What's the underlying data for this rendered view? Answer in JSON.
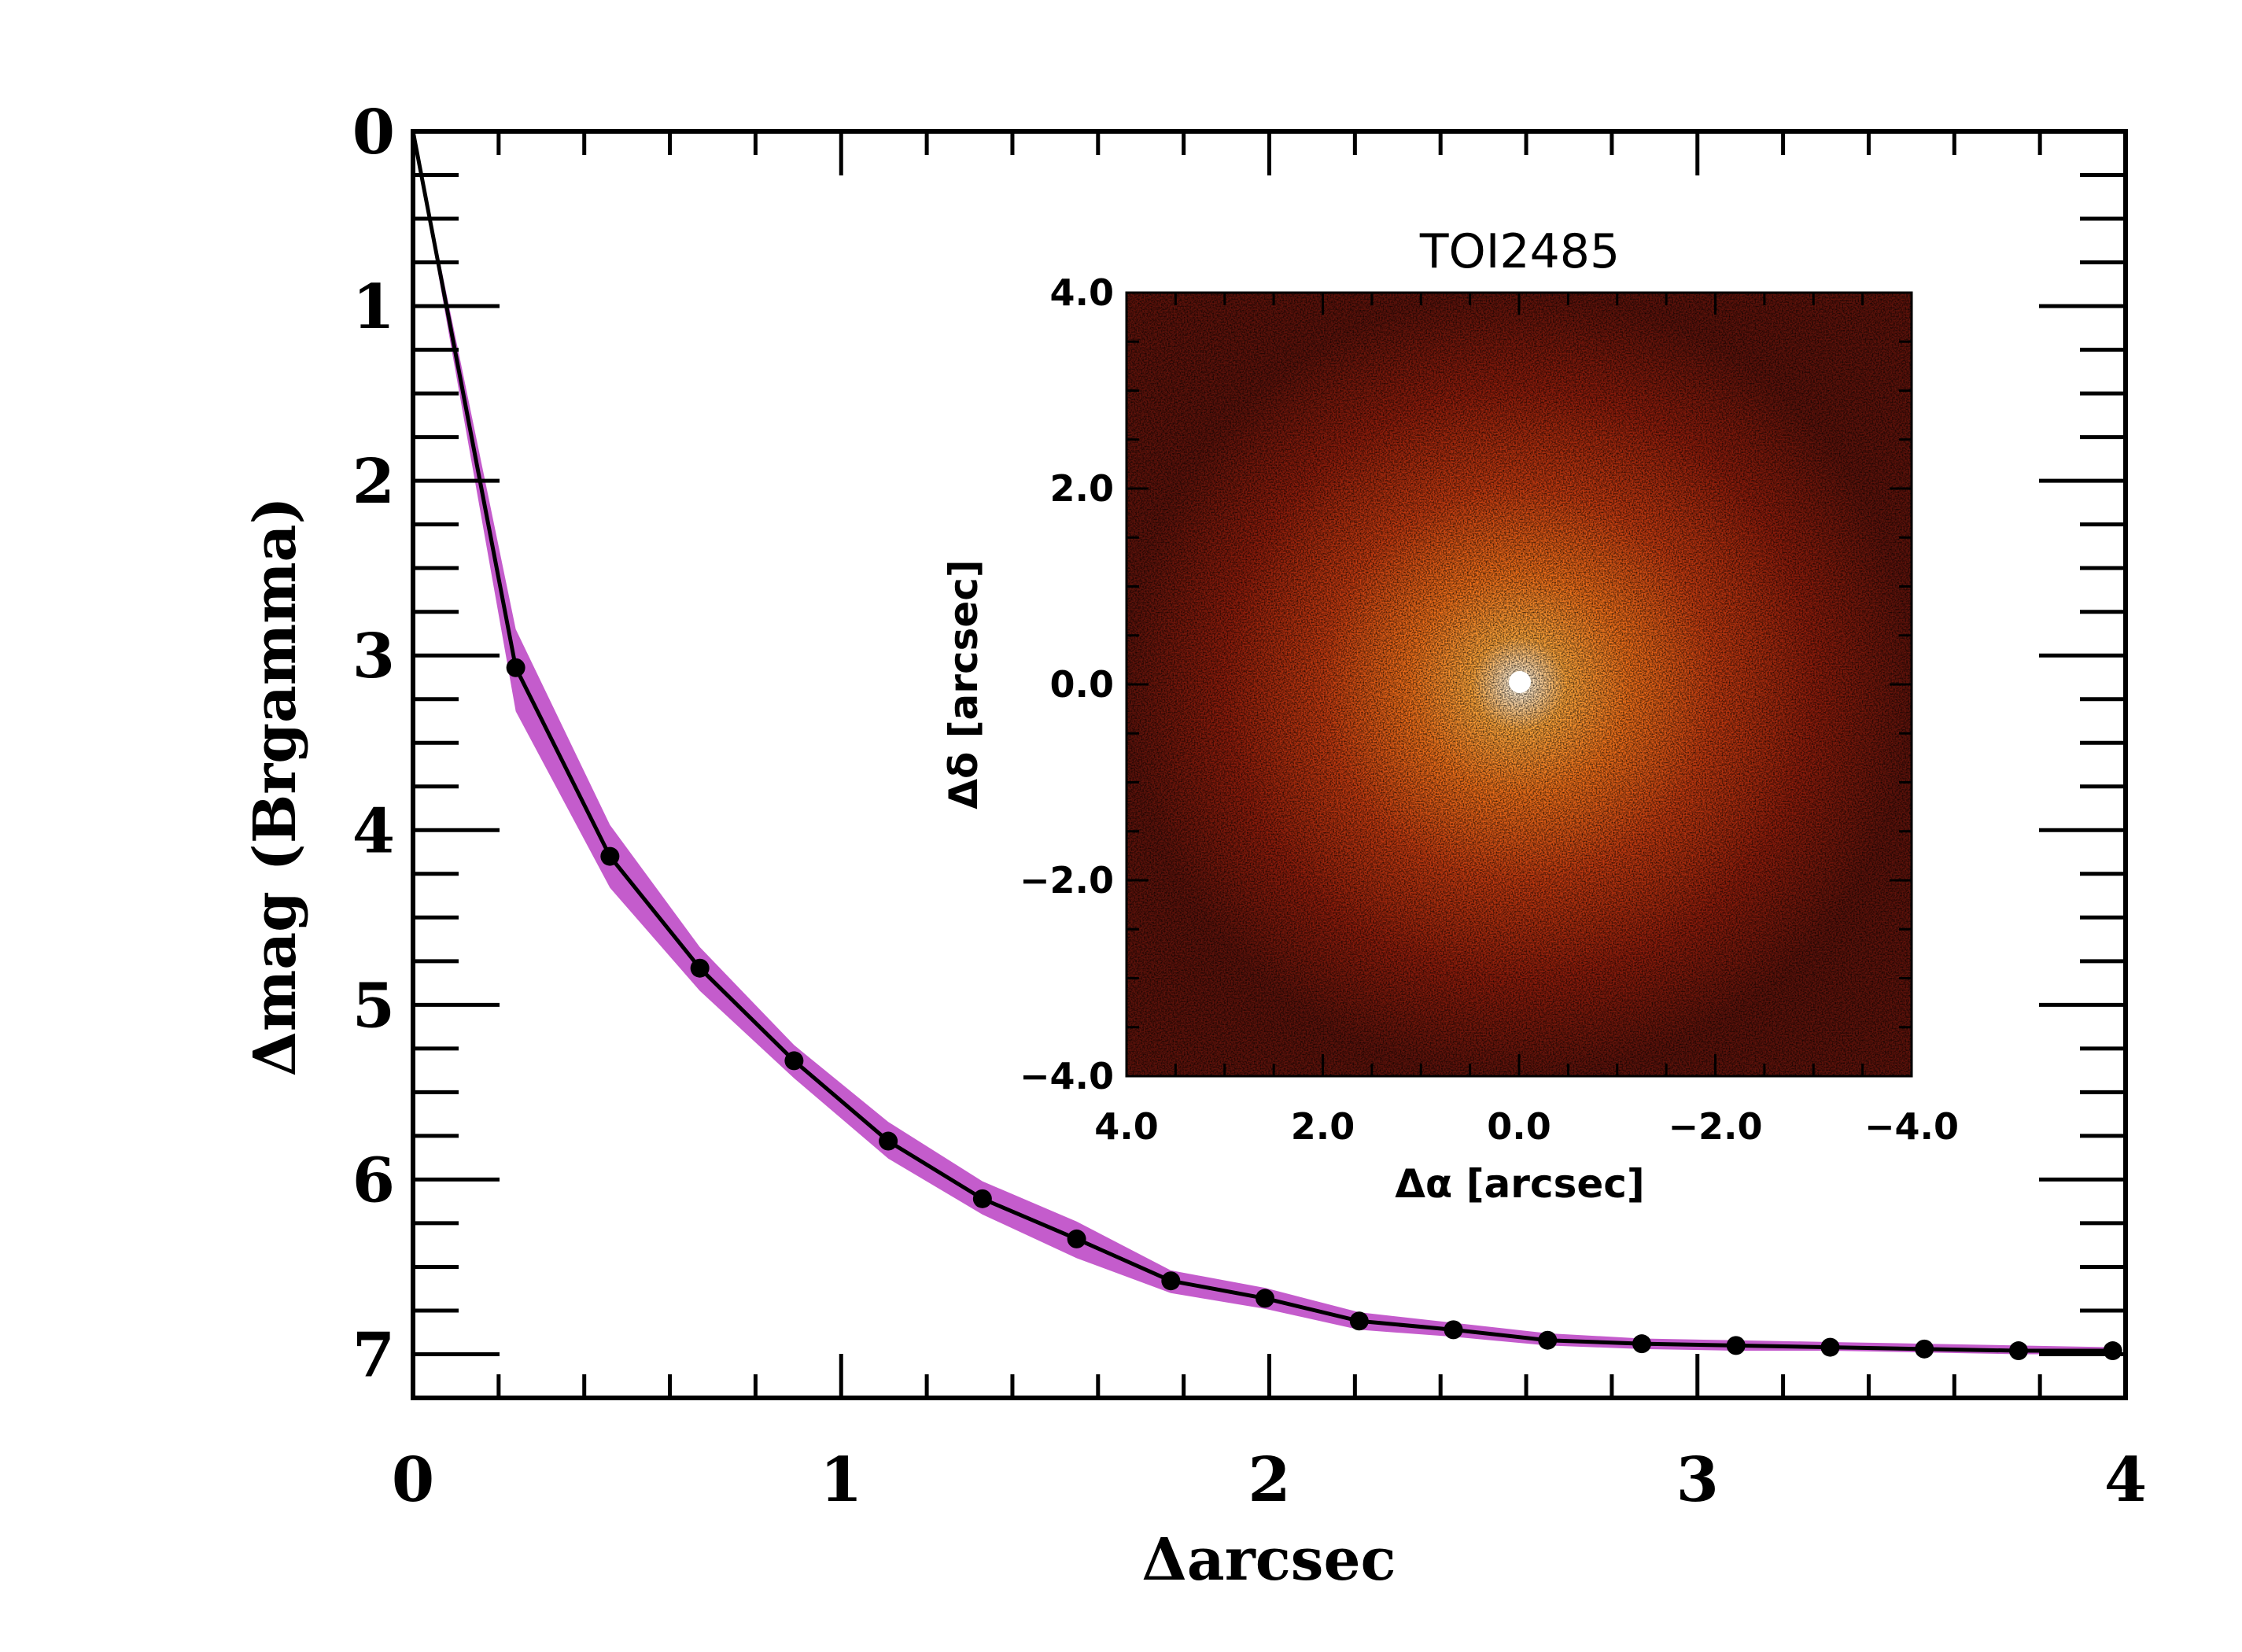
{
  "chart_data": [
    {
      "type": "line",
      "xlabel": "Δarcsec",
      "ylabel": "Δmag (Brgamma)",
      "xlim": [
        0,
        4
      ],
      "ylim": [
        7.25,
        0
      ],
      "y_inverted": true,
      "x_ticks": [
        0,
        1,
        2,
        3,
        4
      ],
      "x_tick_labels": [
        "0",
        "1",
        "2",
        "3",
        "4"
      ],
      "y_ticks": [
        0,
        1,
        2,
        3,
        4,
        5,
        6,
        7
      ],
      "y_tick_labels": [
        "0",
        "1",
        "2",
        "3",
        "4",
        "5",
        "6",
        "7"
      ],
      "band_color": "#c45ccc",
      "line_color": "#000000",
      "series": [
        {
          "x": [
            0.0,
            0.24,
            0.46,
            0.67,
            0.89,
            1.11,
            1.33,
            1.55,
            1.77,
            1.99,
            2.21,
            2.43,
            2.65,
            2.87,
            3.09,
            3.31,
            3.53,
            3.75,
            3.97
          ],
          "values": [
            0.0,
            3.07,
            4.15,
            4.79,
            5.32,
            5.78,
            6.11,
            6.34,
            6.58,
            6.68,
            6.81,
            6.86,
            6.92,
            6.94,
            6.95,
            6.96,
            6.97,
            6.98,
            6.98
          ],
          "band_lower": [
            0.0,
            2.85,
            3.97,
            4.67,
            5.23,
            5.67,
            6.01,
            6.24,
            6.52,
            6.62,
            6.76,
            6.82,
            6.88,
            6.91,
            6.92,
            6.93,
            6.94,
            6.95,
            6.96
          ],
          "band_upper": [
            0.0,
            3.32,
            4.33,
            4.92,
            5.42,
            5.88,
            6.2,
            6.45,
            6.65,
            6.74,
            6.86,
            6.9,
            6.95,
            6.97,
            6.98,
            6.98,
            6.99,
            7.0,
            7.0
          ]
        }
      ]
    },
    {
      "type": "heatmap",
      "title": "TOI2485",
      "xlabel": "Δα [arcsec]",
      "ylabel": "Δδ [arcsec]",
      "xlim": [
        4.0,
        -4.0
      ],
      "ylim": [
        -4.0,
        4.0
      ],
      "x_tick_labels": [
        "4.0",
        "2.0",
        "0.0",
        "−2.0",
        "−4.0"
      ],
      "x_ticks": [
        4.0,
        2.0,
        0.0,
        -2.0,
        -4.0
      ],
      "y_tick_labels": [
        "4.0",
        "2.0",
        "0.0",
        "−2.0",
        "−4.0"
      ],
      "y_ticks": [
        4.0,
        2.0,
        0.0,
        -2.0,
        -4.0
      ],
      "colormap": [
        "#4a0c08",
        "#a31a0c",
        "#e2490c",
        "#ff8a1e",
        "#ffd39a",
        "#ffffff"
      ],
      "source_center": [
        0.0,
        0.0
      ]
    }
  ]
}
